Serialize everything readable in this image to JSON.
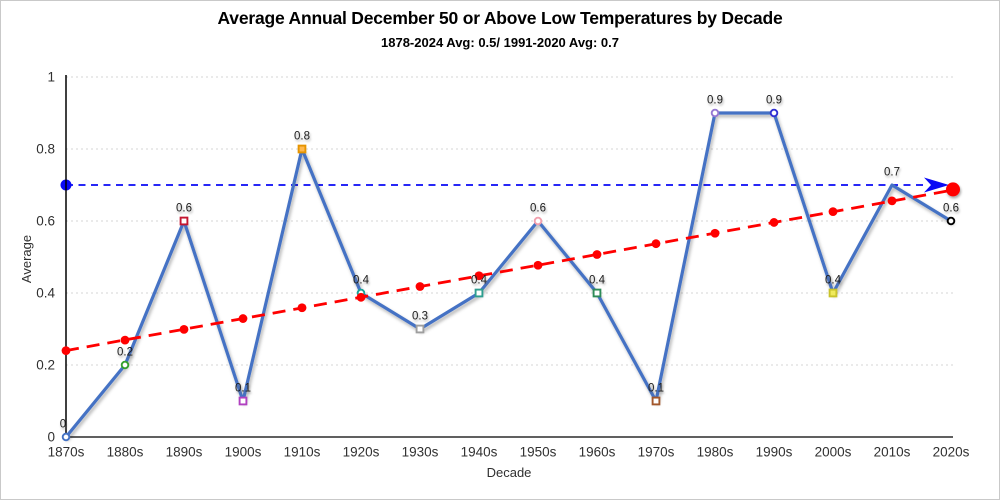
{
  "chart_data": {
    "type": "line",
    "title": "Average Annual December 50 or Above Low Temperatures by Decade",
    "subtitle": "1878-2024 Avg: 0.5/ 1991-2020 Avg: 0.7",
    "xlabel": "Decade",
    "ylabel": "Average",
    "ylim": [
      0,
      1
    ],
    "yticks": [
      0,
      0.2,
      0.4,
      0.6,
      0.8,
      1
    ],
    "ytick_labels": [
      "0",
      "0.2",
      "0.4",
      "0.6",
      "0.8",
      "1"
    ],
    "grid": "horizontal-dotted",
    "legend": "none",
    "categories": [
      "1870s",
      "1880s",
      "1890s",
      "1900s",
      "1910s",
      "1920s",
      "1930s",
      "1940s",
      "1950s",
      "1960s",
      "1970s",
      "1980s",
      "1990s",
      "2000s",
      "2010s",
      "2020s"
    ],
    "series": [
      {
        "name": "decade-average",
        "color": "#4472C4",
        "values": [
          0,
          0.2,
          0.6,
          0.1,
          0.8,
          0.4,
          0.3,
          0.4,
          0.6,
          0.4,
          0.1,
          0.9,
          0.9,
          0.4,
          0.7,
          0.6
        ],
        "data_labels": [
          "0",
          "0.2",
          "0.6",
          "0.1",
          "0.8",
          "0.4",
          "0.3",
          "0.4",
          "0.6",
          "0.4",
          "0.1",
          "0.9",
          "0.9",
          "0.4",
          "0.7",
          "0.6"
        ],
        "markers": [
          {
            "shape": "circle",
            "color": "#4472C4",
            "fill": "#ffffff"
          },
          {
            "shape": "circle",
            "color": "#35A02F",
            "fill": "#ffffff"
          },
          {
            "shape": "square",
            "color": "#C3152F",
            "fill": "#ffffff"
          },
          {
            "shape": "square",
            "color": "#B040C0",
            "fill": "#ffffff"
          },
          {
            "shape": "square",
            "color": "#E59400",
            "fill": "#FFB84D"
          },
          {
            "shape": "circle",
            "color": "#17A398",
            "fill": "#ffffff"
          },
          {
            "shape": "square",
            "color": "#9E9E9E",
            "fill": "#ffffff"
          },
          {
            "shape": "square",
            "color": "#2E9E8F",
            "fill": "#ffffff"
          },
          {
            "shape": "circle",
            "color": "#F2A0AE",
            "fill": "#ffffff"
          },
          {
            "shape": "square",
            "color": "#2E8B57",
            "fill": "#ffffff"
          },
          {
            "shape": "square",
            "color": "#A2572B",
            "fill": "#ffffff"
          },
          {
            "shape": "circle",
            "color": "#9678D3",
            "fill": "#ffffff"
          },
          {
            "shape": "circle",
            "color": "#2F2FD3",
            "fill": "#ffffff"
          },
          {
            "shape": "square",
            "color": "#C9C32A",
            "fill": "#EFEA5C"
          },
          {
            "shape": "none",
            "color": "#4472C4",
            "fill": "#ffffff"
          },
          {
            "shape": "circle",
            "color": "#000000",
            "fill": "#ffffff"
          }
        ]
      }
    ],
    "trendline": {
      "name": "linear-trend",
      "color": "#FF0000",
      "style": "dashed",
      "values": [
        0.24,
        0.269,
        0.299,
        0.329,
        0.359,
        0.388,
        0.418,
        0.448,
        0.477,
        0.507,
        0.537,
        0.566,
        0.596,
        0.626,
        0.656,
        0.685
      ],
      "end_dot": true
    },
    "reference_line": {
      "value": 0.7,
      "color": "#0A0AF5",
      "style": "dashed",
      "start_dot": true,
      "end_arrow": true
    },
    "axis_color": "#000000",
    "gridline_color": "#D6D6D6"
  }
}
